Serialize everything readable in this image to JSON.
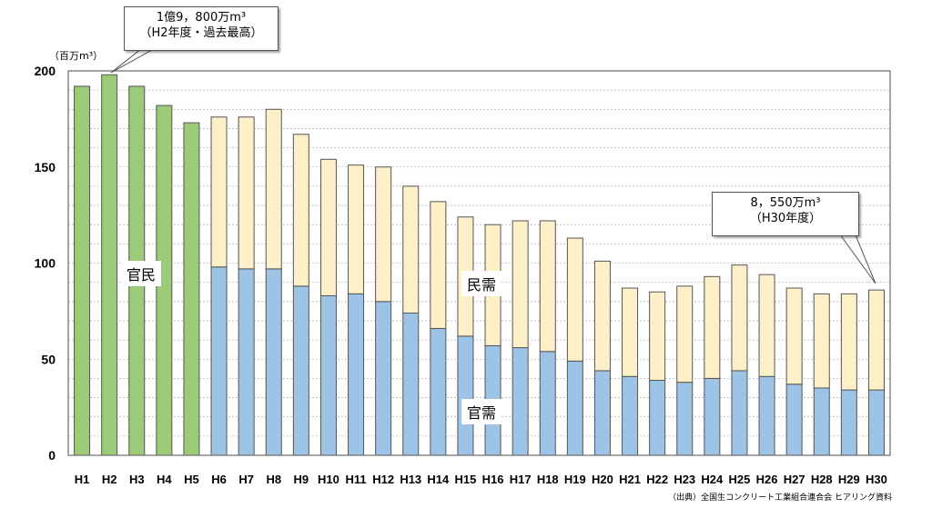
{
  "chart_data": {
    "type": "bar",
    "stacked": true,
    "unit_label": "（百万m³）",
    "categories": [
      "H1",
      "H2",
      "H3",
      "H4",
      "H5",
      "H6",
      "H7",
      "H8",
      "H9",
      "H10",
      "H11",
      "H12",
      "H13",
      "H14",
      "H15",
      "H16",
      "H17",
      "H18",
      "H19",
      "H20",
      "H21",
      "H22",
      "H23",
      "H24",
      "H25",
      "H26",
      "H27",
      "H28",
      "H29",
      "H30"
    ],
    "series": [
      {
        "name": "官民",
        "color": "#9ccb78",
        "values": [
          192,
          198,
          192,
          182,
          173,
          null,
          null,
          null,
          null,
          null,
          null,
          null,
          null,
          null,
          null,
          null,
          null,
          null,
          null,
          null,
          null,
          null,
          null,
          null,
          null,
          null,
          null,
          null,
          null,
          null
        ]
      },
      {
        "name": "官需",
        "color": "#9dc3e6",
        "values": [
          null,
          null,
          null,
          null,
          null,
          98,
          97,
          97,
          88,
          83,
          84,
          80,
          74,
          66,
          62,
          57,
          56,
          54,
          49,
          44,
          41,
          39,
          38,
          40,
          44,
          41,
          37,
          35,
          34,
          34
        ]
      },
      {
        "name": "民需",
        "color": "#fdf0c8",
        "values": [
          null,
          null,
          null,
          null,
          null,
          78,
          79,
          83,
          79,
          71,
          67,
          70,
          66,
          66,
          62,
          63,
          66,
          68,
          64,
          57,
          46,
          46,
          50,
          53,
          55,
          53,
          50,
          49,
          50,
          52
        ]
      }
    ],
    "yticks": [
      0,
      50,
      100,
      150,
      200
    ],
    "ylim": [
      0,
      200
    ],
    "grid": true,
    "callouts": [
      {
        "line1": "1億9，800万m³",
        "line2": "（H2年度・過去最高）"
      },
      {
        "line1": "8，550万m³",
        "line2": "（H30年度）"
      }
    ],
    "source": "（出典）全国生コンクリート工業組合連合会 ヒアリング資料"
  }
}
